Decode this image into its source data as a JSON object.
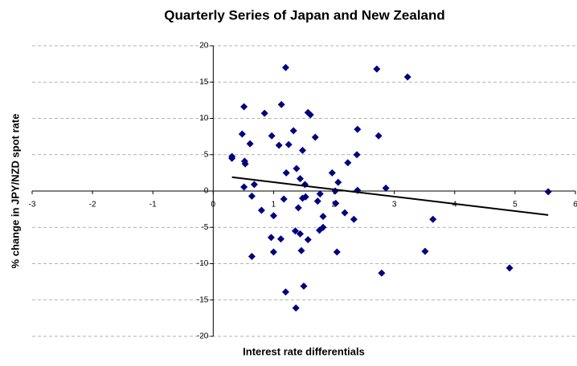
{
  "chart_data": {
    "type": "scatter",
    "title": "Quarterly Series of Japan and New Zealand",
    "xlabel": "Interest rate differentials",
    "ylabel": "% change in JPY/NZD spot rate",
    "color": "#000080",
    "grid": true,
    "xlim": [
      -3,
      6
    ],
    "xticks": [
      -3,
      -2,
      -1,
      0,
      1,
      2,
      3,
      4,
      5,
      6
    ],
    "ylim": [
      -20,
      20
    ],
    "yticks": [
      -20,
      -15,
      -10,
      -5,
      0,
      5,
      10,
      15,
      20
    ],
    "x": [
      0.31,
      0.31,
      0.51,
      0.48,
      0.53,
      0.52,
      0.61,
      0.51,
      0.64,
      0.68,
      0.64,
      0.8,
      0.85,
      0.97,
      1.0,
      0.96,
      1.0,
      1.09,
      1.13,
      1.12,
      1.17,
      1.2,
      1.21,
      1.25,
      1.2,
      1.33,
      1.36,
      1.38,
      1.41,
      1.44,
      1.44,
      1.37,
      1.46,
      1.48,
      1.48,
      1.52,
      1.53,
      1.5,
      1.57,
      1.61,
      1.57,
      1.69,
      1.73,
      1.77,
      1.76,
      1.82,
      1.82,
      1.97,
      2.02,
      2.03,
      2.07,
      2.05,
      2.18,
      2.23,
      2.33,
      2.38,
      2.39,
      2.39,
      2.71,
      2.74,
      2.79,
      2.86,
      3.22,
      3.64,
      3.51,
      4.91,
      5.55
    ],
    "values": [
      4.75,
      4.5,
      11.6,
      7.85,
      3.75,
      4.1,
      6.5,
      0.55,
      -0.7,
      0.9,
      -9.0,
      -2.65,
      10.7,
      7.6,
      -3.4,
      -6.4,
      -8.4,
      6.3,
      11.9,
      -6.6,
      -1.1,
      17.0,
      2.5,
      6.4,
      -13.9,
      8.3,
      -5.5,
      3.1,
      -2.3,
      1.7,
      -5.9,
      -16.1,
      -8.2,
      -1.0,
      5.6,
      0.9,
      -0.8,
      -13.1,
      10.8,
      10.5,
      -6.7,
      7.4,
      -1.4,
      -0.4,
      -5.4,
      -5.0,
      -3.5,
      2.5,
      0.0,
      -1.7,
      1.2,
      -8.4,
      -3.0,
      3.9,
      -3.9,
      5.0,
      8.5,
      0.1,
      16.8,
      7.6,
      -11.3,
      0.4,
      15.7,
      -3.9,
      -8.3,
      -10.6,
      -0.1
    ],
    "trendline": {
      "color": "#000000",
      "x": [
        0.31,
        5.55
      ],
      "values": [
        1.9,
        -3.3
      ]
    }
  }
}
